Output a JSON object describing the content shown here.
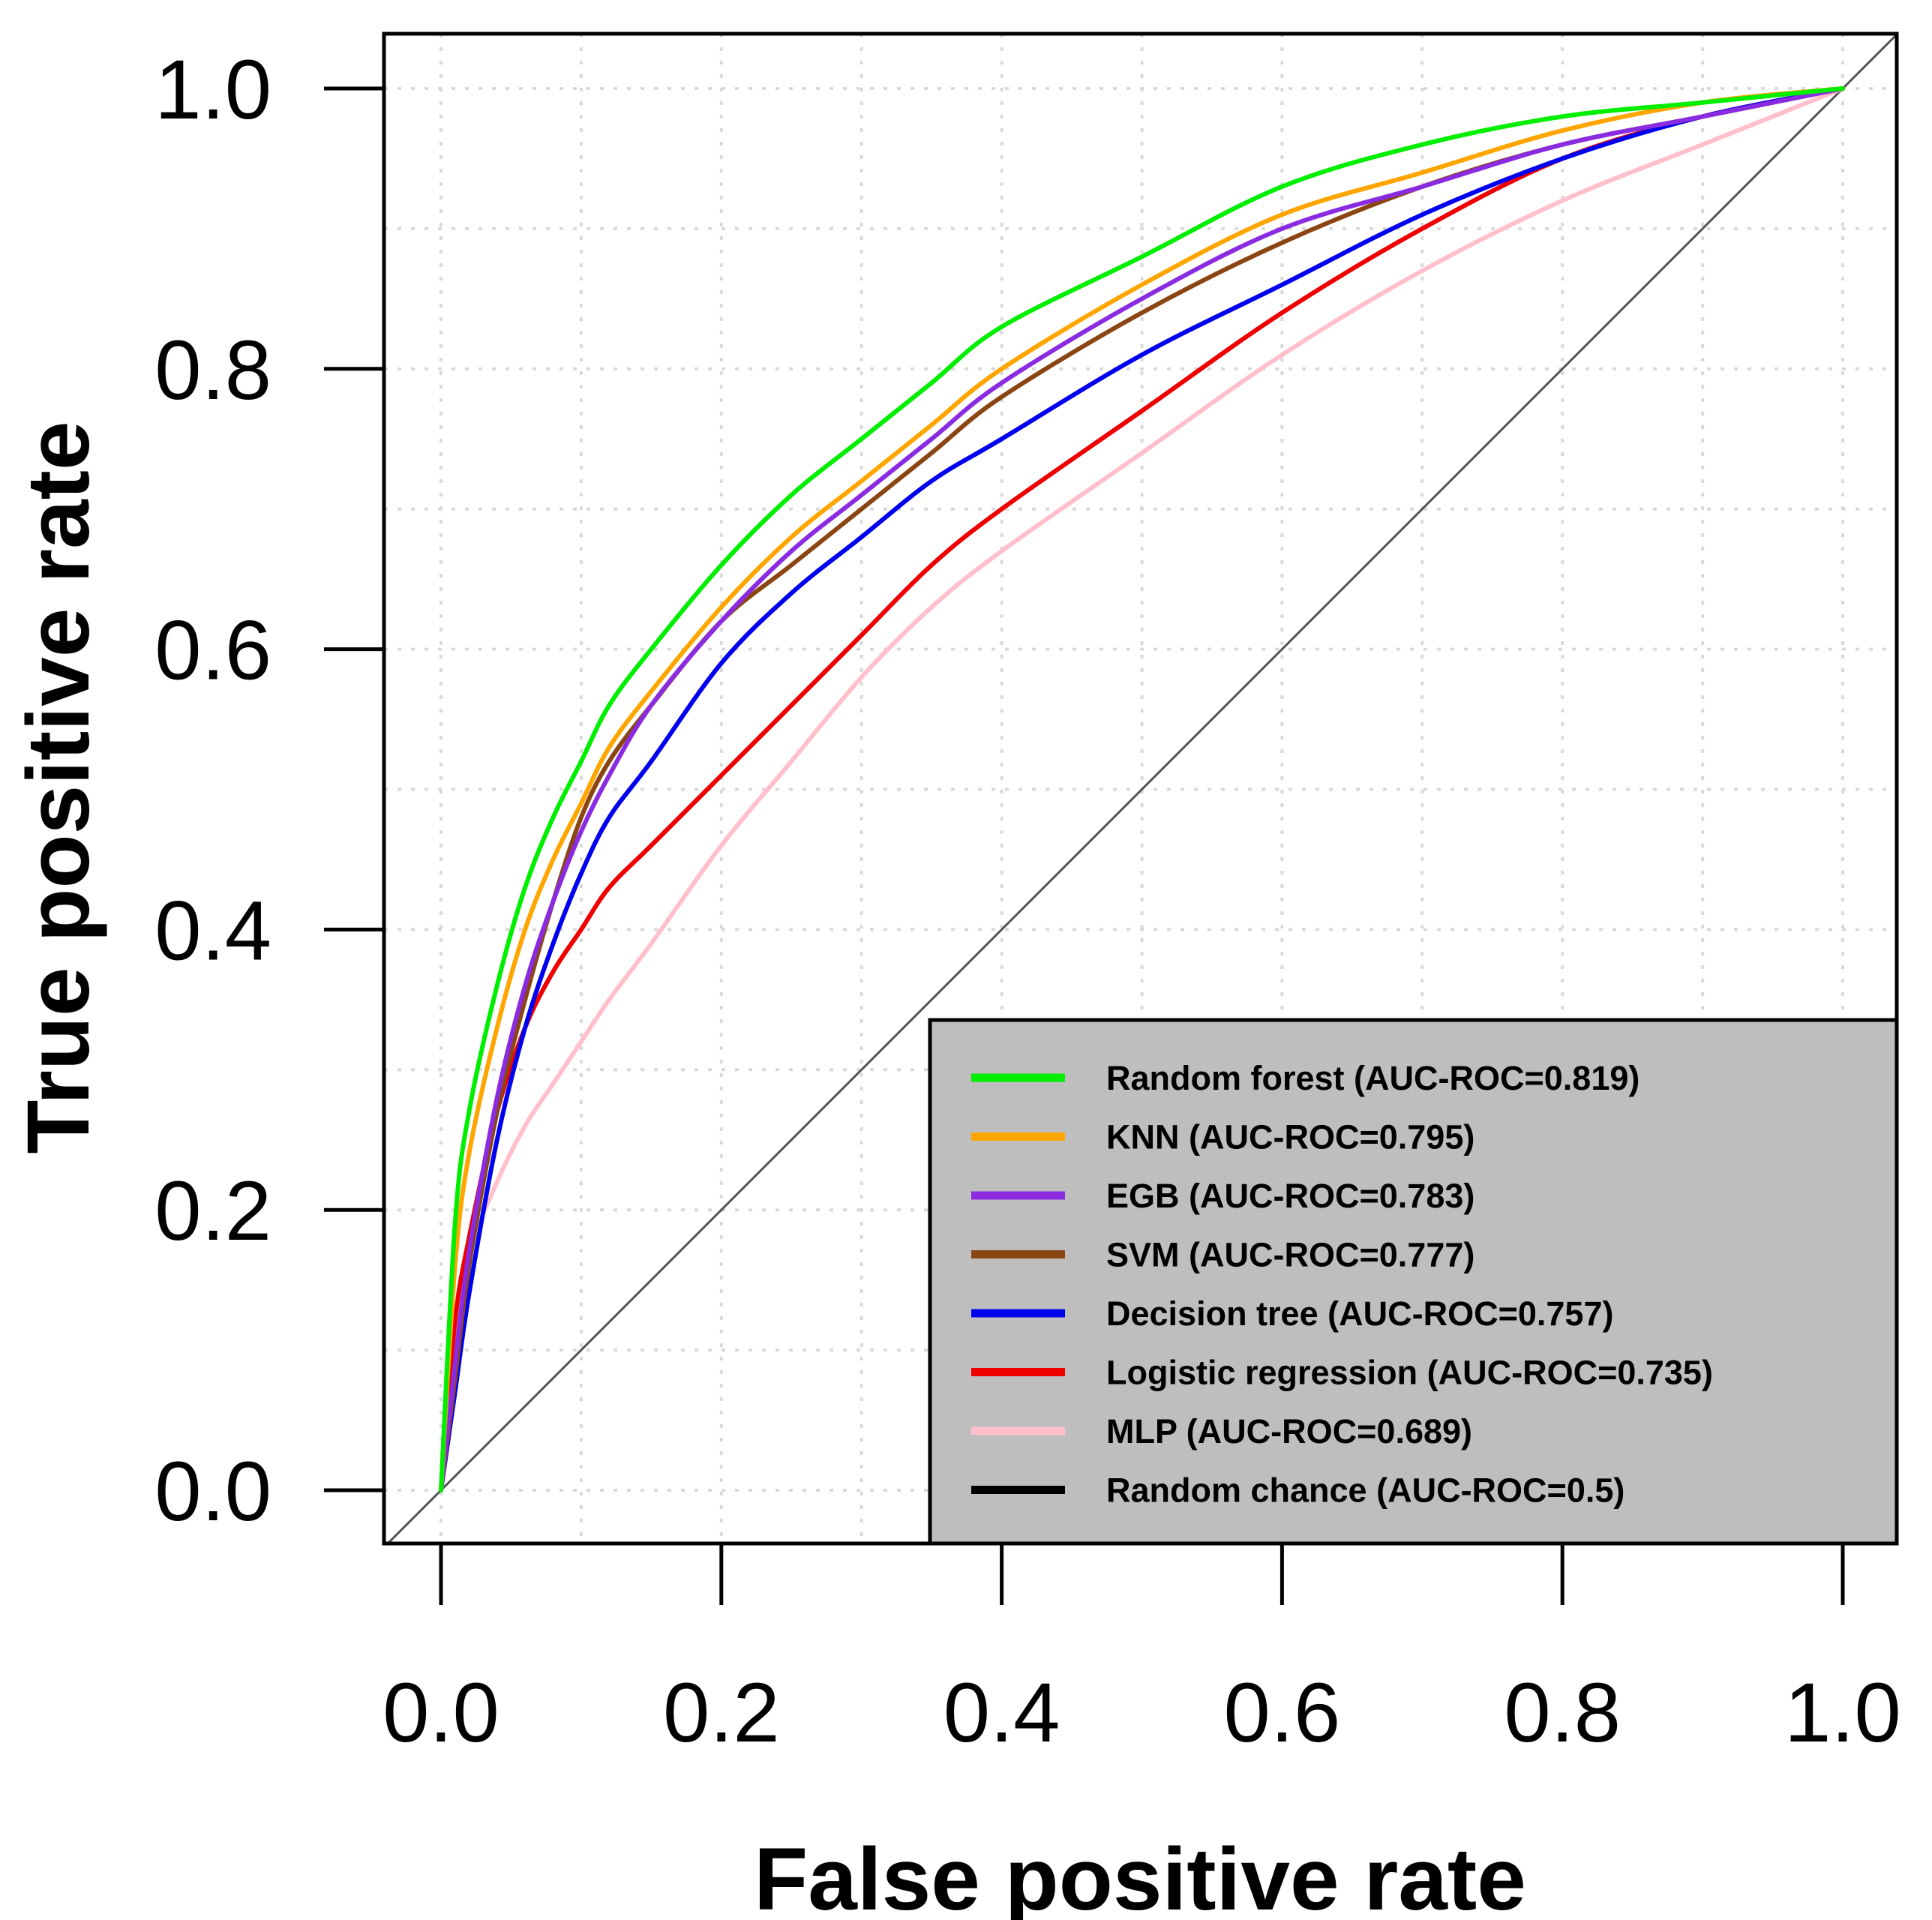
{
  "chart_data": {
    "type": "line",
    "title": "",
    "xlabel": "False positive rate",
    "ylabel": "True positive rate",
    "xlim": [
      0,
      1
    ],
    "ylim": [
      0,
      1
    ],
    "xticks": [
      "0.0",
      "0.2",
      "0.4",
      "0.6",
      "0.8",
      "1.0"
    ],
    "yticks": [
      "0.0",
      "0.2",
      "0.4",
      "0.6",
      "0.8",
      "1.0"
    ],
    "grid": true,
    "legend_position": "bottom-right",
    "series": [
      {
        "name": "Random forest (AUC-ROC=0.819)",
        "color": "#00ee00",
        "x": [
          0,
          0.01,
          0.02,
          0.04,
          0.06,
          0.08,
          0.1,
          0.12,
          0.15,
          0.2,
          0.25,
          0.3,
          0.35,
          0.4,
          0.5,
          0.6,
          0.7,
          0.8,
          0.9,
          1.0
        ],
        "y": [
          0,
          0.19,
          0.27,
          0.36,
          0.43,
          0.48,
          0.52,
          0.56,
          0.6,
          0.66,
          0.71,
          0.75,
          0.79,
          0.83,
          0.88,
          0.93,
          0.96,
          0.98,
          0.99,
          1.0
        ]
      },
      {
        "name": "KNN (AUC-ROC=0.795)",
        "color": "#ffa500",
        "x": [
          0,
          0.01,
          0.02,
          0.04,
          0.06,
          0.08,
          0.1,
          0.12,
          0.15,
          0.2,
          0.25,
          0.3,
          0.35,
          0.4,
          0.5,
          0.6,
          0.7,
          0.8,
          0.9,
          1.0
        ],
        "y": [
          0,
          0.16,
          0.24,
          0.33,
          0.4,
          0.45,
          0.49,
          0.53,
          0.57,
          0.63,
          0.68,
          0.72,
          0.76,
          0.8,
          0.86,
          0.91,
          0.94,
          0.97,
          0.99,
          1.0
        ]
      },
      {
        "name": "EGB (AUC-ROC=0.783)",
        "color": "#8a2be2",
        "x": [
          0,
          0.01,
          0.02,
          0.04,
          0.06,
          0.08,
          0.1,
          0.12,
          0.15,
          0.2,
          0.25,
          0.3,
          0.35,
          0.4,
          0.5,
          0.6,
          0.7,
          0.8,
          0.9,
          1.0
        ],
        "y": [
          0,
          0.09,
          0.17,
          0.28,
          0.36,
          0.42,
          0.47,
          0.51,
          0.56,
          0.62,
          0.67,
          0.71,
          0.75,
          0.79,
          0.85,
          0.9,
          0.93,
          0.96,
          0.98,
          1.0
        ]
      },
      {
        "name": "SVM (AUC-ROC=0.777)",
        "color": "#8b4513",
        "x": [
          0,
          0.01,
          0.02,
          0.04,
          0.06,
          0.08,
          0.1,
          0.12,
          0.15,
          0.2,
          0.25,
          0.3,
          0.35,
          0.4,
          0.5,
          0.6,
          0.7,
          0.8,
          0.9,
          1.0
        ],
        "y": [
          0,
          0.08,
          0.16,
          0.27,
          0.35,
          0.42,
          0.48,
          0.52,
          0.56,
          0.62,
          0.66,
          0.7,
          0.74,
          0.78,
          0.84,
          0.89,
          0.93,
          0.96,
          0.98,
          1.0
        ]
      },
      {
        "name": "Decision tree (AUC-ROC=0.757)",
        "color": "#0000ee",
        "x": [
          0,
          0.01,
          0.02,
          0.04,
          0.06,
          0.08,
          0.1,
          0.12,
          0.15,
          0.2,
          0.25,
          0.3,
          0.35,
          0.4,
          0.5,
          0.6,
          0.7,
          0.8,
          0.9,
          1.0
        ],
        "y": [
          0,
          0.07,
          0.14,
          0.25,
          0.33,
          0.39,
          0.44,
          0.48,
          0.52,
          0.59,
          0.64,
          0.68,
          0.72,
          0.75,
          0.81,
          0.86,
          0.91,
          0.95,
          0.98,
          1.0
        ]
      },
      {
        "name": "Logistic regression (AUC-ROC=0.735)",
        "color": "#ee0000",
        "x": [
          0,
          0.01,
          0.02,
          0.04,
          0.06,
          0.08,
          0.1,
          0.12,
          0.15,
          0.2,
          0.25,
          0.3,
          0.35,
          0.4,
          0.5,
          0.6,
          0.7,
          0.8,
          0.9,
          1.0
        ],
        "y": [
          0,
          0.12,
          0.18,
          0.27,
          0.33,
          0.37,
          0.4,
          0.43,
          0.46,
          0.51,
          0.56,
          0.61,
          0.66,
          0.7,
          0.77,
          0.84,
          0.9,
          0.95,
          0.98,
          1.0
        ]
      },
      {
        "name": "MLP (AUC-ROC=0.689)",
        "color": "#ffc0cb",
        "x": [
          0,
          0.01,
          0.02,
          0.04,
          0.06,
          0.08,
          0.1,
          0.12,
          0.15,
          0.2,
          0.25,
          0.3,
          0.35,
          0.4,
          0.5,
          0.6,
          0.7,
          0.8,
          0.9,
          1.0
        ],
        "y": [
          0,
          0.12,
          0.17,
          0.22,
          0.26,
          0.29,
          0.32,
          0.35,
          0.39,
          0.46,
          0.52,
          0.58,
          0.63,
          0.67,
          0.74,
          0.81,
          0.87,
          0.92,
          0.96,
          1.0
        ]
      },
      {
        "name": "Random chance (AUC-ROC=0.5)",
        "color": "#000000",
        "line_in_plot_color": "#555555",
        "x": [
          -0.04,
          1.04
        ],
        "y": [
          -0.04,
          1.04
        ]
      }
    ]
  }
}
